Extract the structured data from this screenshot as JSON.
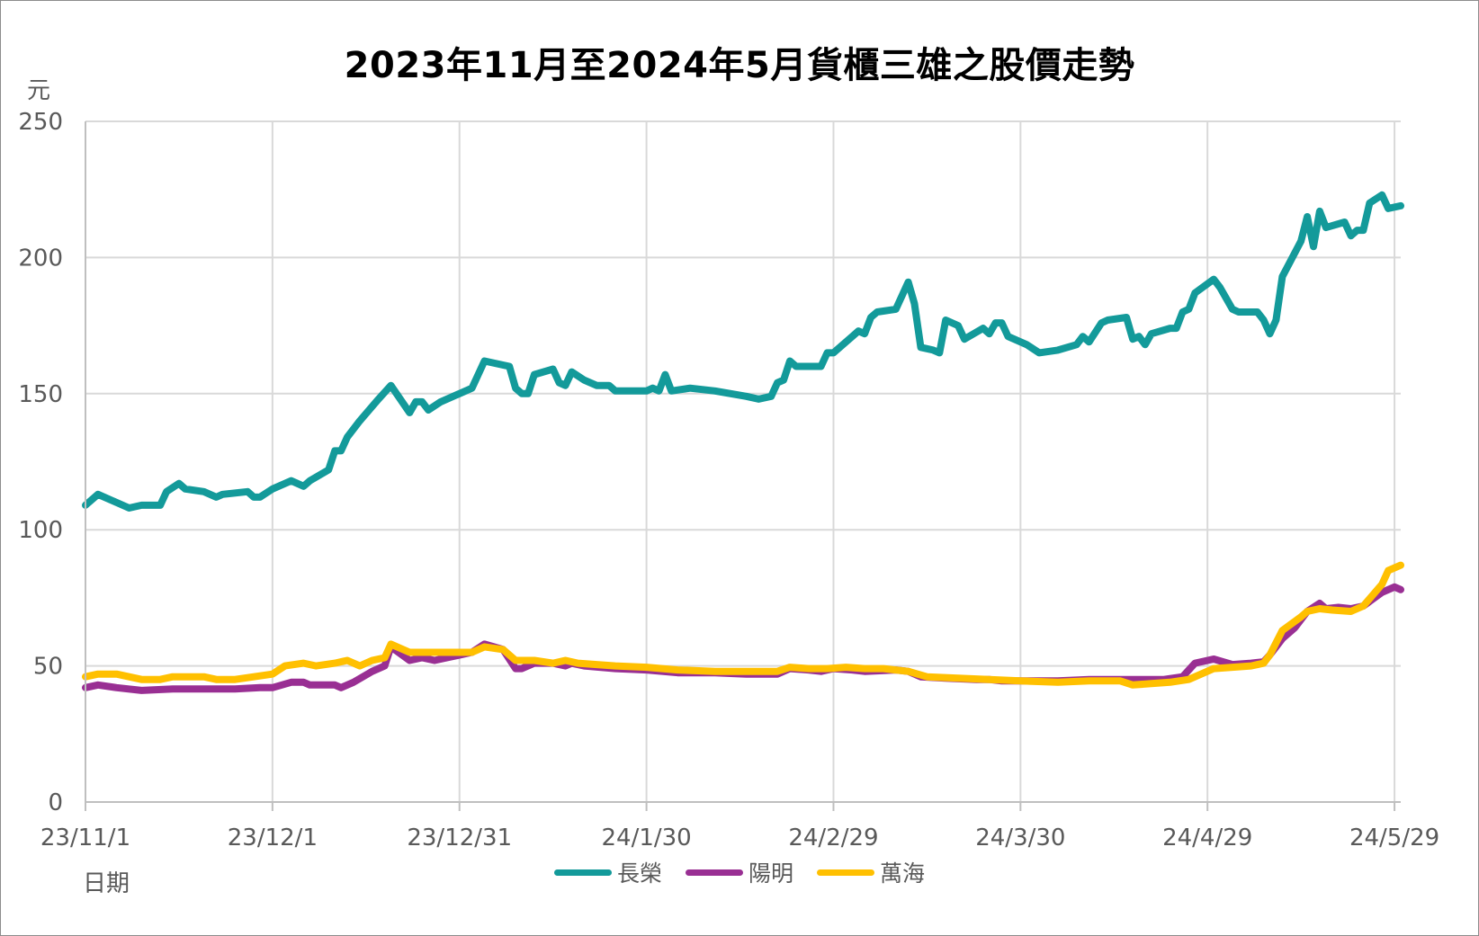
{
  "chart_data": {
    "type": "line",
    "title": "2023年11月至2024年5月貨櫃三雄之股價走勢",
    "ylabel": "元",
    "xlabel": "日期",
    "ylim": [
      0,
      250
    ],
    "yticks": [
      0,
      50,
      100,
      150,
      200,
      250
    ],
    "x_range": [
      "2023-11-01",
      "2024-05-30"
    ],
    "xticks": [
      {
        "date": "2023-11-01",
        "label": "23/11/1"
      },
      {
        "date": "2023-12-01",
        "label": "23/12/1"
      },
      {
        "date": "2023-12-31",
        "label": "23/12/31"
      },
      {
        "date": "2024-01-30",
        "label": "24/1/30"
      },
      {
        "date": "2024-02-29",
        "label": "24/2/29"
      },
      {
        "date": "2024-03-30",
        "label": "24/3/30"
      },
      {
        "date": "2024-04-29",
        "label": "24/4/29"
      },
      {
        "date": "2024-05-29",
        "label": "24/5/29"
      }
    ],
    "grid": true,
    "legend_position": "bottom",
    "series": [
      {
        "name": "長榮",
        "color": "#139a9a",
        "points": [
          [
            "2023-11-01",
            109
          ],
          [
            "2023-11-03",
            113
          ],
          [
            "2023-11-06",
            110
          ],
          [
            "2023-11-08",
            108
          ],
          [
            "2023-11-10",
            109
          ],
          [
            "2023-11-13",
            109
          ],
          [
            "2023-11-14",
            114
          ],
          [
            "2023-11-16",
            117
          ],
          [
            "2023-11-17",
            115
          ],
          [
            "2023-11-20",
            114
          ],
          [
            "2023-11-22",
            112
          ],
          [
            "2023-11-23",
            113
          ],
          [
            "2023-11-27",
            114
          ],
          [
            "2023-11-28",
            112
          ],
          [
            "2023-11-29",
            112
          ],
          [
            "2023-12-01",
            115
          ],
          [
            "2023-12-04",
            118
          ],
          [
            "2023-12-06",
            116
          ],
          [
            "2023-12-07",
            118
          ],
          [
            "2023-12-10",
            122
          ],
          [
            "2023-12-11",
            129
          ],
          [
            "2023-12-12",
            129
          ],
          [
            "2023-12-13",
            134
          ],
          [
            "2023-12-15",
            140
          ],
          [
            "2023-12-18",
            148
          ],
          [
            "2023-12-20",
            153
          ],
          [
            "2023-12-23",
            143
          ],
          [
            "2023-12-24",
            147
          ],
          [
            "2023-12-25",
            147
          ],
          [
            "2023-12-26",
            144
          ],
          [
            "2023-12-28",
            147
          ],
          [
            "2024-01-02",
            152
          ],
          [
            "2024-01-04",
            162
          ],
          [
            "2024-01-06",
            161
          ],
          [
            "2024-01-08",
            160
          ],
          [
            "2024-01-09",
            152
          ],
          [
            "2024-01-10",
            150
          ],
          [
            "2024-01-11",
            150
          ],
          [
            "2024-01-12",
            157
          ],
          [
            "2024-01-15",
            159
          ],
          [
            "2024-01-16",
            154
          ],
          [
            "2024-01-17",
            153
          ],
          [
            "2024-01-18",
            158
          ],
          [
            "2024-01-20",
            155
          ],
          [
            "2024-01-22",
            153
          ],
          [
            "2024-01-24",
            153
          ],
          [
            "2024-01-25",
            151
          ],
          [
            "2024-01-28",
            151
          ],
          [
            "2024-01-30",
            151
          ],
          [
            "2024-01-31",
            152
          ],
          [
            "2024-02-01",
            151
          ],
          [
            "2024-02-02",
            157
          ],
          [
            "2024-02-03",
            151
          ],
          [
            "2024-02-06",
            152
          ],
          [
            "2024-02-10",
            151
          ],
          [
            "2024-02-15",
            149
          ],
          [
            "2024-02-17",
            148
          ],
          [
            "2024-02-19",
            149
          ],
          [
            "2024-02-20",
            154
          ],
          [
            "2024-02-21",
            155
          ],
          [
            "2024-02-22",
            162
          ],
          [
            "2024-02-23",
            160
          ],
          [
            "2024-02-26",
            160
          ],
          [
            "2024-02-27",
            160
          ],
          [
            "2024-02-28",
            165
          ],
          [
            "2024-02-29",
            165
          ],
          [
            "2024-03-03",
            171
          ],
          [
            "2024-03-04",
            173
          ],
          [
            "2024-03-05",
            172
          ],
          [
            "2024-03-06",
            178
          ],
          [
            "2024-03-07",
            180
          ],
          [
            "2024-03-10",
            181
          ],
          [
            "2024-03-12",
            191
          ],
          [
            "2024-03-13",
            183
          ],
          [
            "2024-03-14",
            167
          ],
          [
            "2024-03-16",
            166
          ],
          [
            "2024-03-17",
            165
          ],
          [
            "2024-03-18",
            177
          ],
          [
            "2024-03-20",
            175
          ],
          [
            "2024-03-21",
            170
          ],
          [
            "2024-03-24",
            174
          ],
          [
            "2024-03-25",
            172
          ],
          [
            "2024-03-26",
            176
          ],
          [
            "2024-03-27",
            176
          ],
          [
            "2024-03-28",
            171
          ],
          [
            "2024-03-31",
            168
          ],
          [
            "2024-04-02",
            165
          ],
          [
            "2024-04-05",
            166
          ],
          [
            "2024-04-08",
            168
          ],
          [
            "2024-04-09",
            171
          ],
          [
            "2024-04-10",
            169
          ],
          [
            "2024-04-12",
            176
          ],
          [
            "2024-04-13",
            177
          ],
          [
            "2024-04-16",
            178
          ],
          [
            "2024-04-17",
            170
          ],
          [
            "2024-04-18",
            171
          ],
          [
            "2024-04-19",
            168
          ],
          [
            "2024-04-20",
            172
          ],
          [
            "2024-04-23",
            174
          ],
          [
            "2024-04-24",
            174
          ],
          [
            "2024-04-25",
            180
          ],
          [
            "2024-04-26",
            181
          ],
          [
            "2024-04-27",
            187
          ],
          [
            "2024-04-30",
            192
          ],
          [
            "2024-05-01",
            189
          ],
          [
            "2024-05-03",
            181
          ],
          [
            "2024-05-04",
            180
          ],
          [
            "2024-05-07",
            180
          ],
          [
            "2024-05-08",
            177
          ],
          [
            "2024-05-09",
            172
          ],
          [
            "2024-05-10",
            177
          ],
          [
            "2024-05-11",
            193
          ],
          [
            "2024-05-14",
            206
          ],
          [
            "2024-05-15",
            215
          ],
          [
            "2024-05-16",
            204
          ],
          [
            "2024-05-17",
            217
          ],
          [
            "2024-05-18",
            211
          ],
          [
            "2024-05-21",
            213
          ],
          [
            "2024-05-22",
            208
          ],
          [
            "2024-05-23",
            210
          ],
          [
            "2024-05-24",
            210
          ],
          [
            "2024-05-25",
            220
          ],
          [
            "2024-05-27",
            223
          ],
          [
            "2024-05-28",
            218
          ],
          [
            "2024-05-30",
            219
          ]
        ]
      },
      {
        "name": "陽明",
        "color": "#992f93",
        "points": [
          [
            "2023-11-01",
            42
          ],
          [
            "2023-11-03",
            43
          ],
          [
            "2023-11-06",
            42
          ],
          [
            "2023-11-10",
            41
          ],
          [
            "2023-11-15",
            41.5
          ],
          [
            "2023-11-20",
            41.5
          ],
          [
            "2023-11-25",
            41.5
          ],
          [
            "2023-11-29",
            42
          ],
          [
            "2023-12-01",
            42
          ],
          [
            "2023-12-04",
            44
          ],
          [
            "2023-12-06",
            44
          ],
          [
            "2023-12-07",
            43
          ],
          [
            "2023-12-11",
            43
          ],
          [
            "2023-12-12",
            42
          ],
          [
            "2023-12-14",
            44
          ],
          [
            "2023-12-17",
            48
          ],
          [
            "2023-12-19",
            50
          ],
          [
            "2023-12-20",
            57
          ],
          [
            "2023-12-23",
            52
          ],
          [
            "2023-12-25",
            53
          ],
          [
            "2023-12-27",
            52
          ],
          [
            "2023-12-29",
            53
          ],
          [
            "2024-01-02",
            55
          ],
          [
            "2024-01-04",
            58
          ],
          [
            "2024-01-07",
            56
          ],
          [
            "2024-01-09",
            49
          ],
          [
            "2024-01-10",
            49
          ],
          [
            "2024-01-12",
            51
          ],
          [
            "2024-01-15",
            51
          ],
          [
            "2024-01-17",
            50
          ],
          [
            "2024-01-18",
            51
          ],
          [
            "2024-01-20",
            50
          ],
          [
            "2024-01-25",
            49
          ],
          [
            "2024-01-30",
            48.5
          ],
          [
            "2024-02-04",
            47.5
          ],
          [
            "2024-02-10",
            47.5
          ],
          [
            "2024-02-15",
            47
          ],
          [
            "2024-02-20",
            47
          ],
          [
            "2024-02-22",
            49
          ],
          [
            "2024-02-25",
            48.5
          ],
          [
            "2024-02-27",
            48
          ],
          [
            "2024-02-29",
            49
          ],
          [
            "2024-03-03",
            48.5
          ],
          [
            "2024-03-05",
            48
          ],
          [
            "2024-03-10",
            48.5
          ],
          [
            "2024-03-12",
            48
          ],
          [
            "2024-03-14",
            46
          ],
          [
            "2024-03-18",
            45.5
          ],
          [
            "2024-03-23",
            45
          ],
          [
            "2024-03-25",
            45
          ],
          [
            "2024-03-27",
            44.5
          ],
          [
            "2024-03-31",
            44.5
          ],
          [
            "2024-04-05",
            44.5
          ],
          [
            "2024-04-10",
            45
          ],
          [
            "2024-04-15",
            45
          ],
          [
            "2024-04-18",
            45
          ],
          [
            "2024-04-22",
            45
          ],
          [
            "2024-04-25",
            46
          ],
          [
            "2024-04-27",
            51
          ],
          [
            "2024-04-30",
            52.5
          ],
          [
            "2024-05-03",
            50.5
          ],
          [
            "2024-05-06",
            51
          ],
          [
            "2024-05-08",
            51.5
          ],
          [
            "2024-05-09",
            54
          ],
          [
            "2024-05-11",
            60
          ],
          [
            "2024-05-13",
            64
          ],
          [
            "2024-05-15",
            70
          ],
          [
            "2024-05-17",
            73
          ],
          [
            "2024-05-18",
            71
          ],
          [
            "2024-05-20",
            71.5
          ],
          [
            "2024-05-22",
            71
          ],
          [
            "2024-05-24",
            72
          ],
          [
            "2024-05-27",
            77
          ],
          [
            "2024-05-29",
            79
          ],
          [
            "2024-05-30",
            78
          ]
        ]
      },
      {
        "name": "萬海",
        "color": "#ffc000",
        "points": [
          [
            "2023-11-01",
            46
          ],
          [
            "2023-11-03",
            47
          ],
          [
            "2023-11-06",
            47
          ],
          [
            "2023-11-08",
            46
          ],
          [
            "2023-11-10",
            45
          ],
          [
            "2023-11-13",
            45
          ],
          [
            "2023-11-15",
            46
          ],
          [
            "2023-11-20",
            46
          ],
          [
            "2023-11-22",
            45
          ],
          [
            "2023-11-25",
            45
          ],
          [
            "2023-11-28",
            46
          ],
          [
            "2023-12-01",
            47
          ],
          [
            "2023-12-03",
            50
          ],
          [
            "2023-12-06",
            51
          ],
          [
            "2023-12-08",
            50
          ],
          [
            "2023-12-11",
            51
          ],
          [
            "2023-12-13",
            52
          ],
          [
            "2023-12-15",
            50
          ],
          [
            "2023-12-17",
            52
          ],
          [
            "2023-12-19",
            53
          ],
          [
            "2023-12-20",
            58
          ],
          [
            "2023-12-23",
            55
          ],
          [
            "2023-12-26",
            55
          ],
          [
            "2023-12-28",
            55
          ],
          [
            "2024-01-02",
            55
          ],
          [
            "2024-01-04",
            57
          ],
          [
            "2024-01-07",
            56
          ],
          [
            "2024-01-09",
            52
          ],
          [
            "2024-01-12",
            52
          ],
          [
            "2024-01-15",
            51
          ],
          [
            "2024-01-17",
            52
          ],
          [
            "2024-01-19",
            51
          ],
          [
            "2024-01-25",
            50
          ],
          [
            "2024-01-30",
            49.5
          ],
          [
            "2024-02-04",
            48.5
          ],
          [
            "2024-02-10",
            48
          ],
          [
            "2024-02-15",
            48
          ],
          [
            "2024-02-20",
            48
          ],
          [
            "2024-02-22",
            49.5
          ],
          [
            "2024-02-25",
            49
          ],
          [
            "2024-02-28",
            49
          ],
          [
            "2024-03-02",
            49.5
          ],
          [
            "2024-03-05",
            49
          ],
          [
            "2024-03-08",
            49
          ],
          [
            "2024-03-12",
            48
          ],
          [
            "2024-03-15",
            46
          ],
          [
            "2024-03-20",
            45.5
          ],
          [
            "2024-03-25",
            45
          ],
          [
            "2024-03-30",
            44.5
          ],
          [
            "2024-04-05",
            44
          ],
          [
            "2024-04-10",
            44.5
          ],
          [
            "2024-04-15",
            44.5
          ],
          [
            "2024-04-17",
            43
          ],
          [
            "2024-04-20",
            43.5
          ],
          [
            "2024-04-23",
            44
          ],
          [
            "2024-04-26",
            45
          ],
          [
            "2024-04-30",
            49
          ],
          [
            "2024-05-03",
            49.5
          ],
          [
            "2024-05-06",
            50
          ],
          [
            "2024-05-08",
            51
          ],
          [
            "2024-05-09",
            54
          ],
          [
            "2024-05-11",
            63
          ],
          [
            "2024-05-14",
            68
          ],
          [
            "2024-05-15",
            70
          ],
          [
            "2024-05-17",
            71
          ],
          [
            "2024-05-19",
            70.5
          ],
          [
            "2024-05-22",
            70
          ],
          [
            "2024-05-24",
            72
          ],
          [
            "2024-05-27",
            80
          ],
          [
            "2024-05-28",
            85
          ],
          [
            "2024-05-30",
            87
          ]
        ]
      }
    ]
  }
}
